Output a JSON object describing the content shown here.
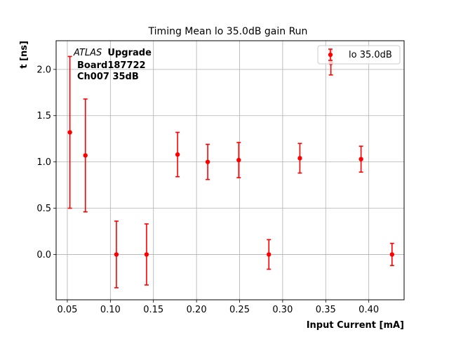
{
  "chart_data": {
    "type": "scatter",
    "title": "Timing Mean lo 35.0dB gain Run",
    "xlabel": "Input Current [mA]",
    "ylabel": "t [ns]",
    "xlim": [
      0.037,
      0.441
    ],
    "ylim": [
      -0.49,
      2.31
    ],
    "xticks": [
      0.05,
      0.1,
      0.15,
      0.2,
      0.25,
      0.3,
      0.35,
      0.4
    ],
    "xtick_labels": [
      "0.05",
      "0.10",
      "0.15",
      "0.20",
      "0.25",
      "0.30",
      "0.35",
      "0.40"
    ],
    "yticks": [
      0.0,
      0.5,
      1.0,
      1.5,
      2.0
    ],
    "ytick_labels": [
      "0.0",
      "0.5",
      "1.0",
      "1.5",
      "2.0"
    ],
    "grid": true,
    "legend_position": "top-right",
    "series": [
      {
        "name": "lo 35.0dB",
        "color": "#ff0000",
        "x": [
          0.053,
          0.071,
          0.107,
          0.142,
          0.178,
          0.213,
          0.249,
          0.284,
          0.32,
          0.356,
          0.391,
          0.427
        ],
        "y": [
          1.32,
          1.07,
          0.0,
          0.0,
          1.08,
          1.0,
          1.02,
          0.0,
          1.04,
          2.07,
          1.03,
          0.0
        ],
        "yerr": [
          0.82,
          0.61,
          0.36,
          0.33,
          0.24,
          0.19,
          0.19,
          0.16,
          0.16,
          0.13,
          0.14,
          0.12
        ]
      }
    ],
    "annotation": {
      "experiment": "ATLAS",
      "tag": "Upgrade",
      "line2": "Board187722",
      "line3": "Ch007 35dB"
    }
  }
}
